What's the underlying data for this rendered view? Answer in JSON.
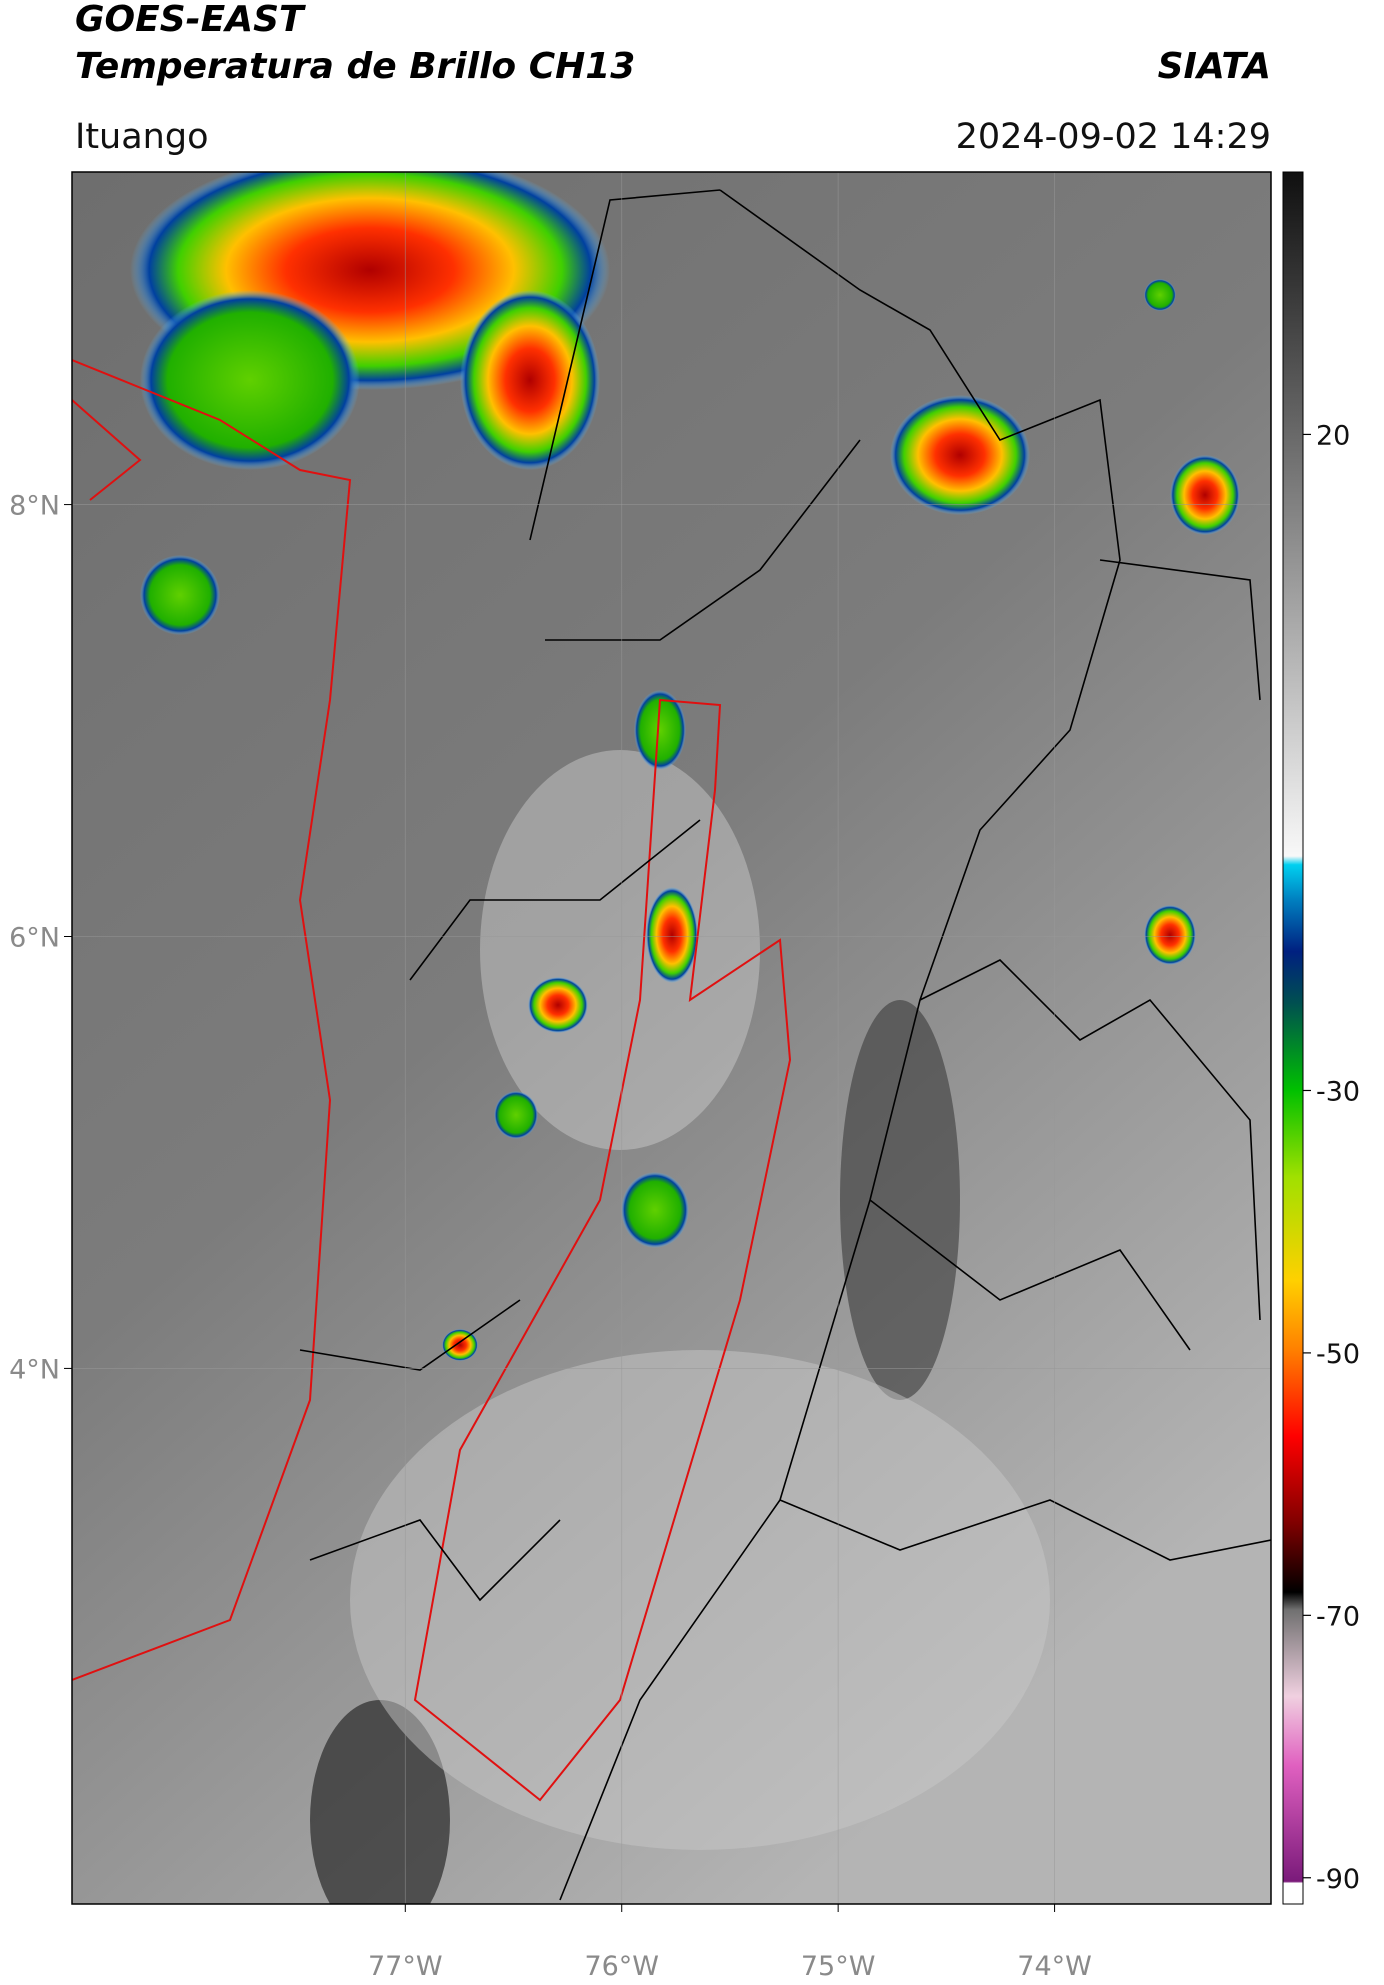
{
  "header": {
    "title": "GOES-EAST",
    "subtitle": "Temperatura de Brillo CH13",
    "brand": "SIATA",
    "location": "Ituango",
    "datetime": "2024-09-02 14:29"
  },
  "map": {
    "xlim": [
      -78.54,
      -73.0
    ],
    "ylim": [
      1.52,
      9.54
    ],
    "xticks": [
      {
        "value": -77,
        "label": "77°W"
      },
      {
        "value": -76,
        "label": "76°W"
      },
      {
        "value": -75,
        "label": "75°W"
      },
      {
        "value": -74,
        "label": "74°W"
      }
    ],
    "yticks": [
      {
        "value": 8,
        "label": "8°N"
      },
      {
        "value": 6,
        "label": "6°N"
      },
      {
        "value": 4,
        "label": "4°N"
      }
    ],
    "grid": true
  },
  "colorbar": {
    "lim": [
      -92,
      40
    ],
    "ticks": [
      20,
      -30,
      -50,
      -70,
      -90
    ]
  }
}
